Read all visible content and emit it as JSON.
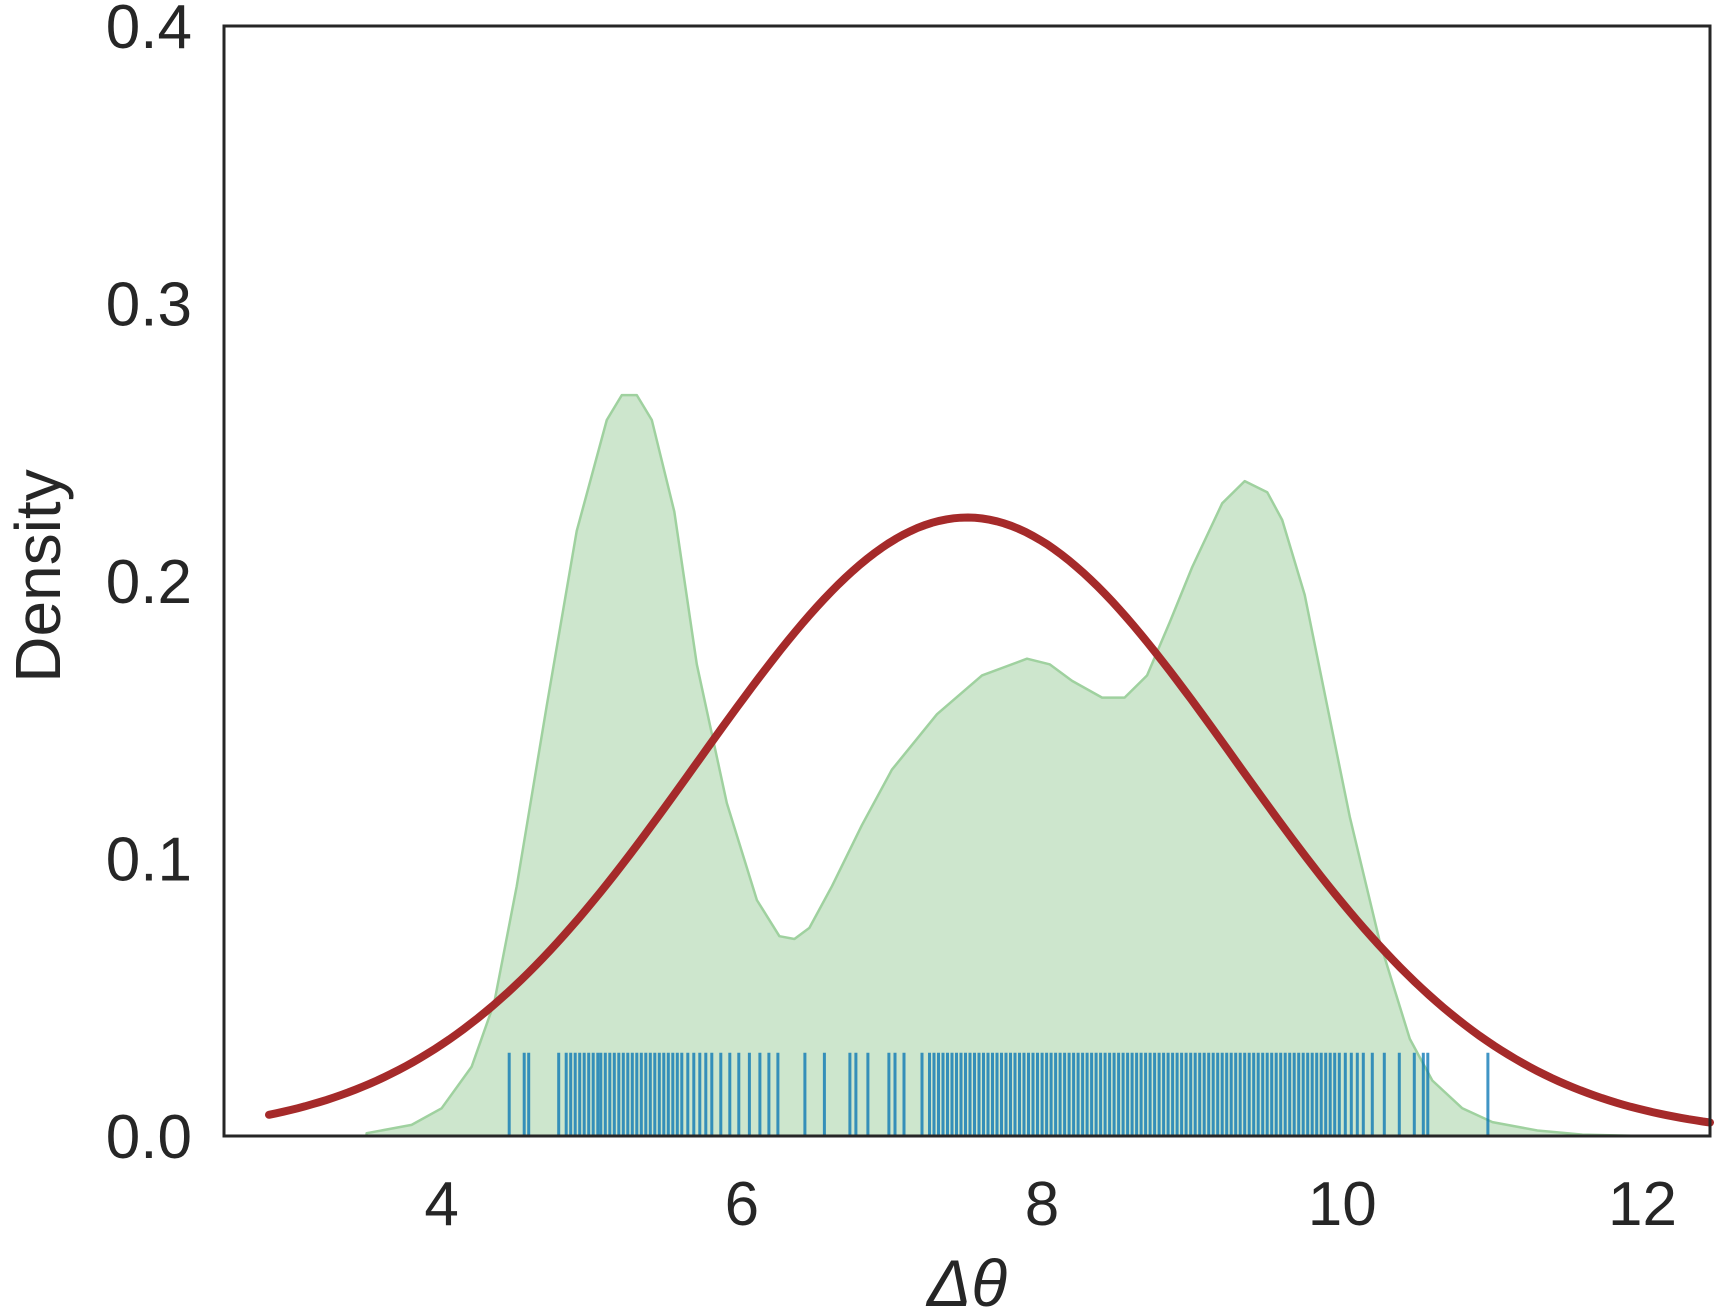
{
  "chart_data": {
    "type": "area",
    "xlabel": "Δθ",
    "ylabel": "Density",
    "xlim": [
      2.55,
      12.45
    ],
    "ylim": [
      0,
      0.4
    ],
    "x_ticks": [
      4,
      6,
      8,
      10,
      12
    ],
    "x_tick_labels": [
      "4",
      "6",
      "8",
      "10",
      "12"
    ],
    "y_ticks": [
      0,
      0.1,
      0.2,
      0.3,
      0.4
    ],
    "y_tick_labels": [
      "0.0",
      "0.1",
      "0.2",
      "0.3",
      "0.4"
    ],
    "grid": false,
    "kde": {
      "color": "#b2d8b2",
      "x": [
        3.5,
        3.8,
        4.0,
        4.2,
        4.35,
        4.5,
        4.7,
        4.9,
        5.1,
        5.2,
        5.3,
        5.4,
        5.55,
        5.7,
        5.9,
        6.1,
        6.25,
        6.35,
        6.45,
        6.6,
        6.8,
        7.0,
        7.3,
        7.6,
        7.9,
        8.05,
        8.2,
        8.4,
        8.55,
        8.7,
        8.85,
        9.0,
        9.2,
        9.35,
        9.5,
        9.6,
        9.75,
        9.9,
        10.05,
        10.25,
        10.45,
        10.6,
        10.8,
        11.0,
        11.3,
        11.6,
        12.0
      ],
      "y": [
        0.001,
        0.004,
        0.01,
        0.025,
        0.048,
        0.09,
        0.155,
        0.218,
        0.258,
        0.267,
        0.267,
        0.258,
        0.225,
        0.17,
        0.12,
        0.085,
        0.072,
        0.071,
        0.075,
        0.09,
        0.112,
        0.132,
        0.152,
        0.166,
        0.172,
        0.17,
        0.164,
        0.158,
        0.158,
        0.166,
        0.185,
        0.205,
        0.228,
        0.236,
        0.232,
        0.222,
        0.195,
        0.155,
        0.115,
        0.07,
        0.035,
        0.02,
        0.01,
        0.005,
        0.002,
        0.0005,
        0.0
      ]
    },
    "normal_fit": {
      "color": "#a52a2a",
      "x_range": [
        2.85,
        12.45
      ],
      "mean": 7.5,
      "sd": 1.79
    },
    "rug": {
      "color": "#0072b2",
      "height": 0.03,
      "x": [
        4.45,
        4.55,
        4.58,
        4.78,
        4.83,
        4.86,
        4.89,
        4.92,
        4.95,
        4.98,
        5.01,
        5.04,
        5.06,
        5.09,
        5.12,
        5.15,
        5.18,
        5.21,
        5.24,
        5.27,
        5.3,
        5.33,
        5.36,
        5.39,
        5.42,
        5.45,
        5.48,
        5.51,
        5.54,
        5.57,
        5.6,
        5.64,
        5.68,
        5.72,
        5.76,
        5.8,
        5.86,
        5.92,
        5.98,
        6.05,
        6.12,
        6.18,
        6.24,
        6.42,
        6.55,
        6.72,
        6.76,
        6.84,
        6.98,
        7.02,
        7.08,
        7.2,
        7.25,
        7.28,
        7.31,
        7.34,
        7.37,
        7.4,
        7.43,
        7.46,
        7.49,
        7.52,
        7.55,
        7.58,
        7.61,
        7.64,
        7.67,
        7.7,
        7.73,
        7.76,
        7.79,
        7.82,
        7.85,
        7.88,
        7.91,
        7.94,
        7.97,
        8.0,
        8.03,
        8.06,
        8.09,
        8.12,
        8.15,
        8.18,
        8.21,
        8.24,
        8.27,
        8.3,
        8.33,
        8.36,
        8.39,
        8.42,
        8.45,
        8.48,
        8.51,
        8.54,
        8.57,
        8.6,
        8.63,
        8.66,
        8.69,
        8.72,
        8.75,
        8.78,
        8.81,
        8.84,
        8.87,
        8.9,
        8.93,
        8.96,
        8.99,
        9.02,
        9.05,
        9.08,
        9.11,
        9.14,
        9.17,
        9.2,
        9.23,
        9.26,
        9.29,
        9.32,
        9.35,
        9.38,
        9.41,
        9.44,
        9.47,
        9.5,
        9.53,
        9.56,
        9.59,
        9.62,
        9.65,
        9.68,
        9.71,
        9.74,
        9.77,
        9.8,
        9.83,
        9.86,
        9.89,
        9.92,
        9.95,
        9.98,
        10.02,
        10.06,
        10.1,
        10.14,
        10.2,
        10.28,
        10.38,
        10.48,
        10.54,
        10.57,
        10.97
      ]
    }
  }
}
